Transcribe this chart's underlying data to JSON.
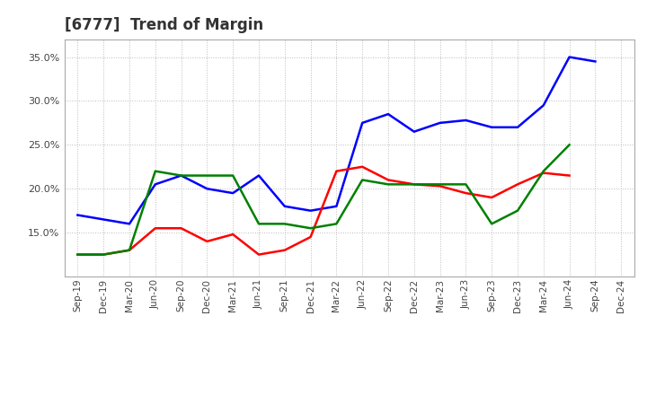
{
  "title": "[6777]  Trend of Margin",
  "x_labels": [
    "Sep-19",
    "Dec-19",
    "Mar-20",
    "Jun-20",
    "Sep-20",
    "Dec-20",
    "Mar-21",
    "Jun-21",
    "Sep-21",
    "Dec-21",
    "Mar-22",
    "Jun-22",
    "Sep-22",
    "Dec-22",
    "Mar-23",
    "Jun-23",
    "Sep-23",
    "Dec-23",
    "Mar-24",
    "Jun-24",
    "Sep-24",
    "Dec-24"
  ],
  "ordinary_income": [
    17.0,
    16.5,
    16.0,
    20.5,
    21.5,
    20.0,
    19.5,
    21.5,
    18.0,
    17.5,
    18.0,
    27.5,
    28.5,
    26.5,
    27.5,
    27.8,
    27.0,
    27.0,
    29.5,
    35.0,
    34.5,
    null
  ],
  "net_income": [
    12.5,
    12.5,
    13.0,
    15.5,
    15.5,
    14.0,
    14.8,
    12.5,
    13.0,
    14.5,
    22.0,
    22.5,
    21.0,
    20.5,
    20.3,
    19.5,
    19.0,
    20.5,
    21.8,
    21.5,
    null,
    null
  ],
  "operating_cashflow": [
    12.5,
    12.5,
    13.0,
    22.0,
    21.5,
    21.5,
    21.5,
    16.0,
    16.0,
    15.5,
    16.0,
    21.0,
    20.5,
    20.5,
    20.5,
    20.5,
    16.0,
    17.5,
    22.0,
    25.0,
    null,
    null
  ],
  "colors": {
    "ordinary_income": "#0000FF",
    "net_income": "#FF0000",
    "operating_cashflow": "#008000"
  },
  "ylim": [
    10.0,
    37.0
  ],
  "yticks": [
    15.0,
    20.0,
    25.0,
    30.0,
    35.0
  ],
  "background_color": "#FFFFFF",
  "plot_background": "#FFFFFF",
  "grid_color": "#BBBBBB",
  "line_width": 1.8
}
